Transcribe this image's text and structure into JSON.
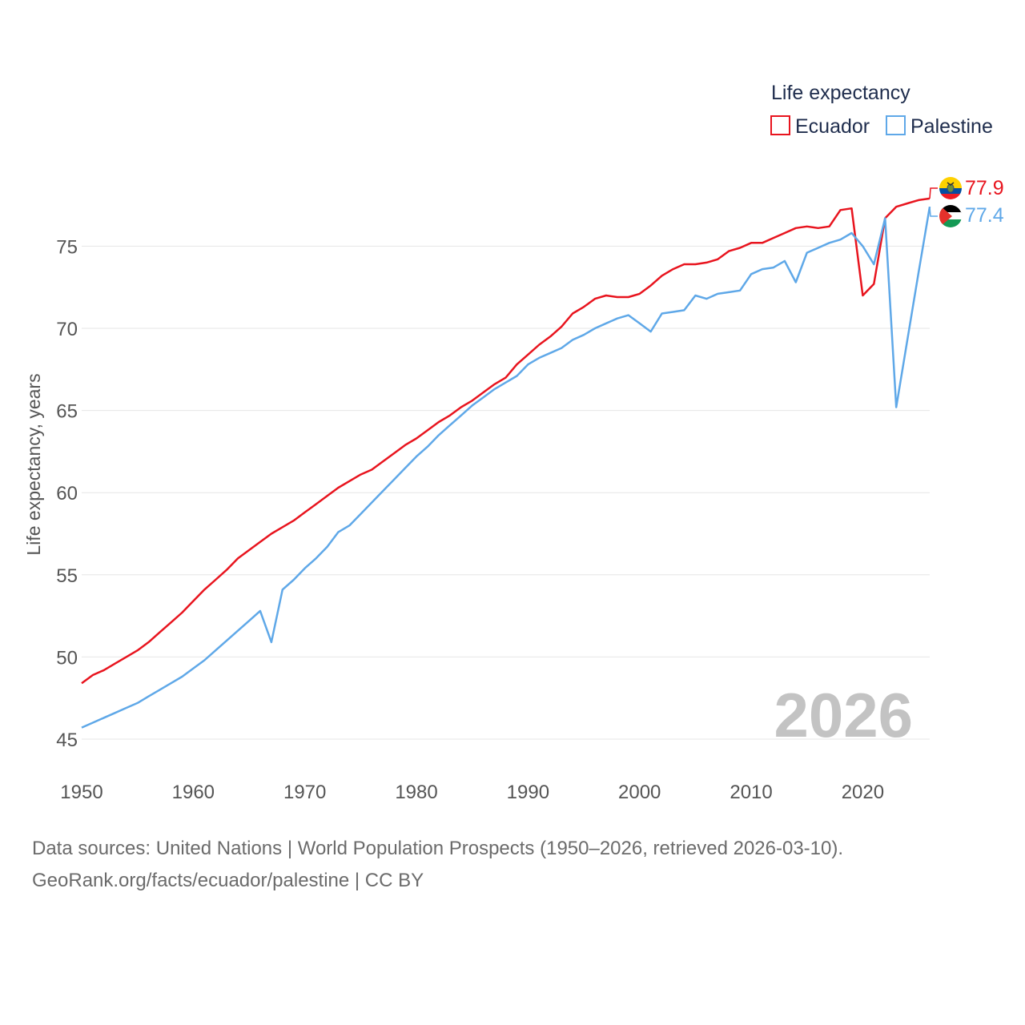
{
  "chart_data": {
    "type": "line",
    "legend_title": "Life expectancy",
    "ylabel": "Life expectancy, years",
    "xlabel": "",
    "xlim": [
      1950,
      2026
    ],
    "ylim": [
      45,
      79
    ],
    "x_ticks": [
      1950,
      1960,
      1970,
      1980,
      1990,
      2000,
      2010,
      2020
    ],
    "y_ticks": [
      45,
      50,
      55,
      60,
      65,
      70,
      75
    ],
    "year_watermark": "2026",
    "x": [
      1950,
      1951,
      1952,
      1953,
      1954,
      1955,
      1956,
      1957,
      1958,
      1959,
      1960,
      1961,
      1962,
      1963,
      1964,
      1965,
      1966,
      1967,
      1968,
      1969,
      1970,
      1971,
      1972,
      1973,
      1974,
      1975,
      1976,
      1977,
      1978,
      1979,
      1980,
      1981,
      1982,
      1983,
      1984,
      1985,
      1986,
      1987,
      1988,
      1989,
      1990,
      1991,
      1992,
      1993,
      1994,
      1995,
      1996,
      1997,
      1998,
      1999,
      2000,
      2001,
      2002,
      2003,
      2004,
      2005,
      2006,
      2007,
      2008,
      2009,
      2010,
      2011,
      2012,
      2013,
      2014,
      2015,
      2016,
      2017,
      2018,
      2019,
      2020,
      2021,
      2022,
      2023,
      2024,
      2025,
      2026
    ],
    "series": [
      {
        "name": "Ecuador",
        "color": "#e8141e",
        "end_label": "77.9",
        "flag": "ecuador-flag",
        "values": [
          48.4,
          48.9,
          49.2,
          49.6,
          50.0,
          50.4,
          50.9,
          51.5,
          52.1,
          52.7,
          53.4,
          54.1,
          54.7,
          55.3,
          56.0,
          56.5,
          57.0,
          57.5,
          57.9,
          58.3,
          58.8,
          59.3,
          59.8,
          60.3,
          60.7,
          61.1,
          61.4,
          61.9,
          62.4,
          62.9,
          63.3,
          63.8,
          64.3,
          64.7,
          65.2,
          65.6,
          66.1,
          66.6,
          67.0,
          67.8,
          68.4,
          69.0,
          69.5,
          70.1,
          70.9,
          71.3,
          71.8,
          72.0,
          71.9,
          71.9,
          72.1,
          72.6,
          73.2,
          73.6,
          73.9,
          73.9,
          74.0,
          74.2,
          74.7,
          74.9,
          75.2,
          75.2,
          75.5,
          75.8,
          76.1,
          76.2,
          76.1,
          76.2,
          77.2,
          77.3,
          72.0,
          72.7,
          76.7,
          77.4,
          77.6,
          77.8,
          77.9
        ]
      },
      {
        "name": "Palestine",
        "color": "#5fa8e8",
        "end_label": "77.4",
        "flag": "palestine-flag",
        "values": [
          45.7,
          46.0,
          46.3,
          46.6,
          46.9,
          47.2,
          47.6,
          48.0,
          48.4,
          48.8,
          49.3,
          49.8,
          50.4,
          51.0,
          51.6,
          52.2,
          52.8,
          50.9,
          54.1,
          54.7,
          55.4,
          56.0,
          56.7,
          57.6,
          58.0,
          58.7,
          59.4,
          60.1,
          60.8,
          61.5,
          62.2,
          62.8,
          63.5,
          64.1,
          64.7,
          65.3,
          65.8,
          66.3,
          66.7,
          67.1,
          67.8,
          68.2,
          68.5,
          68.8,
          69.3,
          69.6,
          70.0,
          70.3,
          70.6,
          70.8,
          70.3,
          69.8,
          70.9,
          71.0,
          71.1,
          72.0,
          71.8,
          72.1,
          72.2,
          72.3,
          73.3,
          73.6,
          73.7,
          74.1,
          72.8,
          74.6,
          74.9,
          75.2,
          75.4,
          75.8,
          75.0,
          73.9,
          76.7,
          65.2,
          69.3,
          73.4,
          77.4
        ]
      }
    ]
  },
  "source": {
    "line1": "Data sources: United Nations | World Population Prospects (1950–2026, retrieved 2026-03-10).",
    "line2": "GeoRank.org/facts/ecuador/palestine | CC BY"
  }
}
